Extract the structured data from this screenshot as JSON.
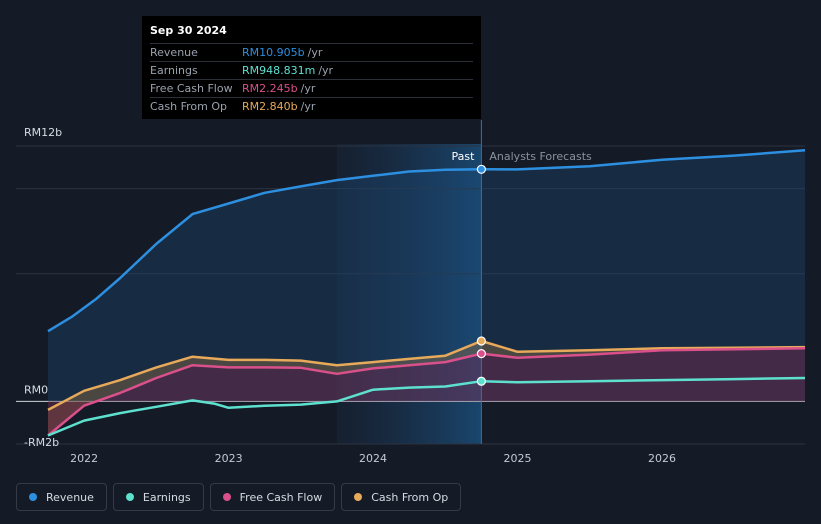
{
  "tooltip": {
    "date": "Sep 30 2024",
    "rows": [
      {
        "label": "Revenue",
        "value": "RM10.905b",
        "unit": "/yr",
        "color": "#2d8fe0"
      },
      {
        "label": "Earnings",
        "value": "RM948.831m",
        "unit": "/yr",
        "color": "#5ee0cf"
      },
      {
        "label": "Free Cash Flow",
        "value": "RM2.245b",
        "unit": "/yr",
        "color": "#d9508a"
      },
      {
        "label": "Cash From Op",
        "value": "RM2.840b",
        "unit": "/yr",
        "color": "#e7a95a"
      }
    ]
  },
  "legend": [
    {
      "label": "Revenue",
      "color": "#2d8fe0"
    },
    {
      "label": "Earnings",
      "color": "#5ee0cf"
    },
    {
      "label": "Free Cash Flow",
      "color": "#d9508a"
    },
    {
      "label": "Cash From Op",
      "color": "#e7a95a"
    }
  ],
  "chart_data": {
    "type": "line",
    "title": "",
    "past_label": "Past",
    "forecast_label": "Analysts Forecasts",
    "y_labels": [
      {
        "value": 12,
        "text": "RM12b"
      },
      {
        "value": 0,
        "text": "RM0"
      },
      {
        "value": -2,
        "text": "-RM2b"
      }
    ],
    "ylim": [
      -2,
      12
    ],
    "xlim": [
      2021.7,
      2026.99
    ],
    "x_ticks": [
      {
        "value": 2022,
        "text": "2022"
      },
      {
        "value": 2023,
        "text": "2023"
      },
      {
        "value": 2024,
        "text": "2024"
      },
      {
        "value": 2025,
        "text": "2025"
      },
      {
        "value": 2026,
        "text": "2026"
      }
    ],
    "highlight_start": 2023.75,
    "past_end": 2024.75,
    "series": [
      {
        "name": "Revenue",
        "color": "#2d8fe0",
        "x": [
          2021.75,
          2021.92,
          2022.08,
          2022.25,
          2022.5,
          2022.75,
          2023.0,
          2023.25,
          2023.5,
          2023.75,
          2024.0,
          2024.25,
          2024.5,
          2024.75,
          2025.0,
          2025.5,
          2026.0,
          2026.5,
          2026.99
        ],
        "values": [
          3.3,
          4.0,
          4.8,
          5.8,
          7.4,
          8.8,
          9.3,
          9.8,
          10.1,
          10.4,
          10.6,
          10.8,
          10.88,
          10.905,
          10.9,
          11.05,
          11.35,
          11.55,
          11.8
        ]
      },
      {
        "name": "Cash From Op",
        "color": "#e7a95a",
        "x": [
          2021.75,
          2022.0,
          2022.25,
          2022.5,
          2022.75,
          2023.0,
          2023.25,
          2023.5,
          2023.75,
          2024.0,
          2024.25,
          2024.5,
          2024.75,
          2025.0,
          2025.5,
          2026.0,
          2026.5,
          2026.99
        ],
        "values": [
          -0.4,
          0.5,
          1.0,
          1.6,
          2.1,
          1.95,
          1.95,
          1.92,
          1.7,
          1.85,
          2.0,
          2.15,
          2.84,
          2.33,
          2.4,
          2.5,
          2.52,
          2.55
        ]
      },
      {
        "name": "Free Cash Flow",
        "color": "#d9508a",
        "x": [
          2021.75,
          2022.0,
          2022.25,
          2022.5,
          2022.75,
          2023.0,
          2023.25,
          2023.5,
          2023.75,
          2024.0,
          2024.25,
          2024.5,
          2024.75,
          2025.0,
          2025.5,
          2026.0,
          2026.5,
          2026.99
        ],
        "values": [
          -1.6,
          -0.2,
          0.4,
          1.1,
          1.7,
          1.6,
          1.6,
          1.58,
          1.3,
          1.55,
          1.7,
          1.85,
          2.245,
          2.05,
          2.2,
          2.4,
          2.45,
          2.5
        ]
      },
      {
        "name": "Earnings",
        "color": "#5ee0cf",
        "x": [
          2021.75,
          2022.0,
          2022.25,
          2022.5,
          2022.75,
          2022.9,
          2023.0,
          2023.25,
          2023.5,
          2023.75,
          2024.0,
          2024.25,
          2024.5,
          2024.75,
          2025.0,
          2025.5,
          2026.0,
          2026.5,
          2026.99
        ],
        "values": [
          -1.6,
          -0.9,
          -0.55,
          -0.25,
          0.05,
          -0.1,
          -0.3,
          -0.2,
          -0.15,
          0.0,
          0.55,
          0.65,
          0.7,
          0.949,
          0.9,
          0.95,
          1.0,
          1.05,
          1.1
        ]
      }
    ]
  }
}
